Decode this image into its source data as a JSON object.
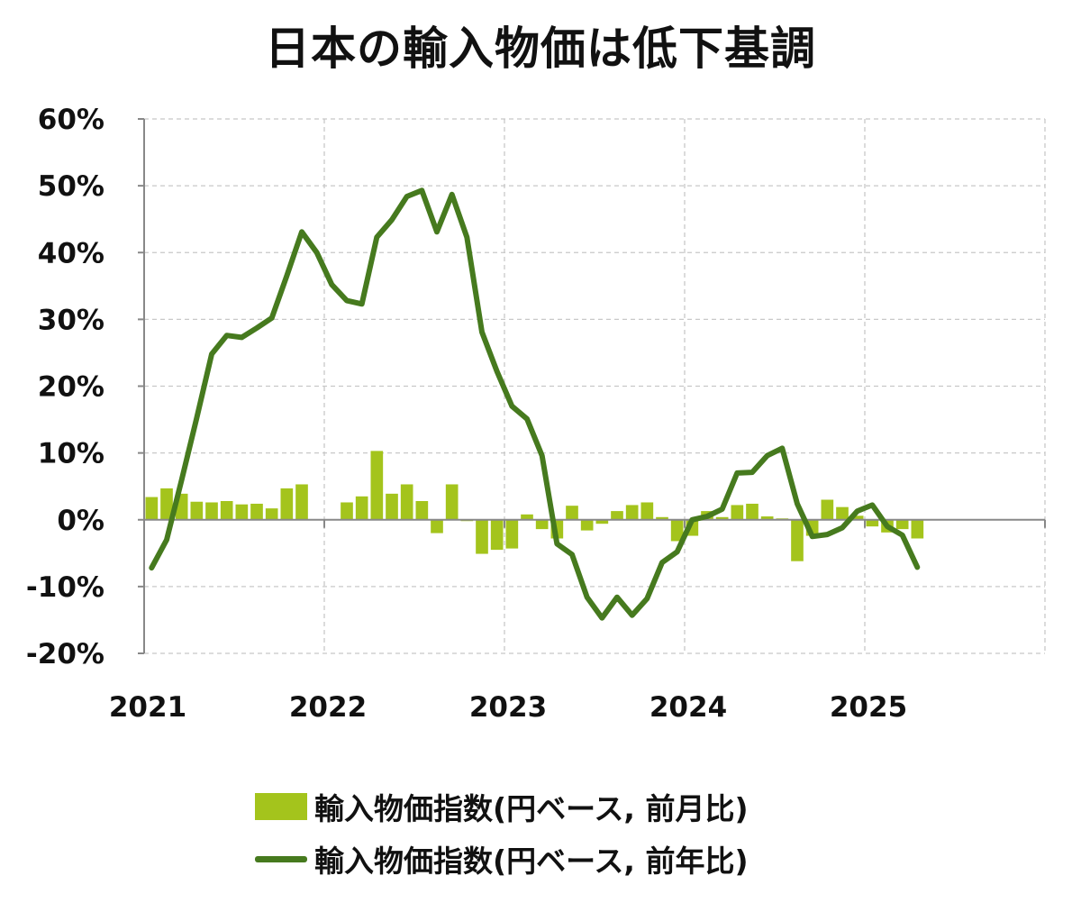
{
  "title": "日本の輸入物価は低下基調",
  "colors": {
    "bar": "#a4c41c",
    "line": "#467a1e",
    "grid": "#c8c8c8",
    "axis": "#888888"
  },
  "legend": {
    "bar_label": "輸入物価指数(円ベース, 前月比)",
    "line_label": "輸入物価指数(円ベース, 前年比)"
  },
  "chart_data": {
    "type": "bar+line",
    "title": "日本の輸入物価は低下基調",
    "ylim": [
      -20,
      60
    ],
    "yticks": [
      60,
      50,
      40,
      30,
      20,
      10,
      0,
      -10,
      -20
    ],
    "ytick_labels": [
      "60%",
      "50%",
      "40%",
      "30%",
      "20%",
      "10%",
      "0%",
      "-10%",
      "-20%"
    ],
    "xlim": [
      2021,
      2026
    ],
    "xticks": [
      2021,
      2022,
      2023,
      2024,
      2025
    ],
    "xtick_labels": [
      "2021",
      "2022",
      "2023",
      "2024",
      "2025"
    ],
    "grid": true,
    "legend_position": "bottom",
    "months": [
      "2021-01",
      "2021-02",
      "2021-03",
      "2021-04",
      "2021-05",
      "2021-06",
      "2021-07",
      "2021-08",
      "2021-09",
      "2021-10",
      "2021-11",
      "2021-12",
      "2022-01",
      "2022-02",
      "2022-03",
      "2022-04",
      "2022-05",
      "2022-06",
      "2022-07",
      "2022-08",
      "2022-09",
      "2022-10",
      "2022-11",
      "2022-12",
      "2023-01",
      "2023-02",
      "2023-03",
      "2023-04",
      "2023-05",
      "2023-06",
      "2023-07",
      "2023-08",
      "2023-09",
      "2023-10",
      "2023-11",
      "2023-12",
      "2024-01",
      "2024-02",
      "2024-03",
      "2024-04",
      "2024-05",
      "2024-06",
      "2024-07",
      "2024-08",
      "2024-09",
      "2024-10",
      "2024-11",
      "2024-12",
      "2025-01",
      "2025-02",
      "2025-03",
      "2025-04"
    ],
    "series": [
      {
        "name": "輸入物価指数(円ベース, 前月比)",
        "kind": "bar",
        "values": [
          3.4,
          4.7,
          3.9,
          2.7,
          2.6,
          2.8,
          2.3,
          2.4,
          1.7,
          4.7,
          5.3,
          -0.1,
          0.0,
          2.6,
          3.5,
          10.3,
          3.9,
          5.3,
          2.8,
          -2.0,
          5.3,
          -0.2,
          -5.1,
          -4.5,
          -4.3,
          0.8,
          -1.4,
          -2.8,
          2.1,
          -1.6,
          -0.6,
          1.3,
          2.2,
          2.6,
          0.4,
          -3.2,
          -2.4,
          1.3,
          0.4,
          2.2,
          2.4,
          0.5,
          0.2,
          -6.2,
          -2.4,
          3.0,
          1.9,
          0.6,
          -1.0,
          -1.9,
          -1.4,
          -2.8
        ]
      },
      {
        "name": "輸入物価指数(円ベース, 前年比)",
        "kind": "line",
        "values": [
          -7.2,
          -3.0,
          6.0,
          15.2,
          24.8,
          27.6,
          27.3,
          28.7,
          30.2,
          36.5,
          43.1,
          40.0,
          35.2,
          32.8,
          32.3,
          42.3,
          44.9,
          48.4,
          49.3,
          43.1,
          48.7,
          42.3,
          28.1,
          22.2,
          17.0,
          15.1,
          9.6,
          -3.6,
          -5.2,
          -11.6,
          -14.7,
          -11.6,
          -14.3,
          -11.8,
          -6.4,
          -4.8,
          0.0,
          0.5,
          1.6,
          7.0,
          7.1,
          9.6,
          10.7,
          2.4,
          -2.5,
          -2.2,
          -1.2,
          1.3,
          2.2,
          -1.0,
          -2.3,
          -7.1
        ]
      }
    ]
  }
}
